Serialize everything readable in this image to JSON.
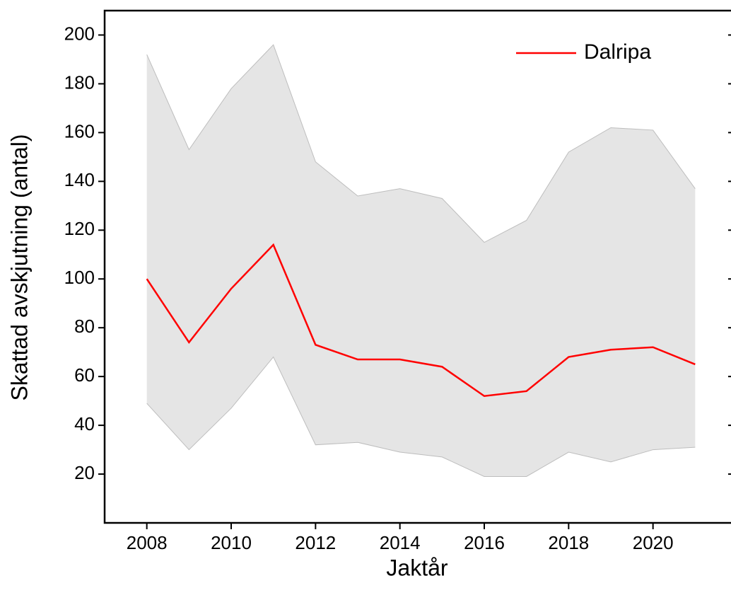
{
  "chart_data": {
    "type": "line",
    "x": [
      2008,
      2009,
      2010,
      2011,
      2012,
      2013,
      2014,
      2015,
      2016,
      2017,
      2018,
      2019,
      2020,
      2021
    ],
    "series": [
      {
        "name": "Dalripa",
        "color": "#ff0000",
        "values": [
          100,
          74,
          96,
          114,
          73,
          67,
          67,
          64,
          52,
          54,
          68,
          71,
          72,
          65
        ]
      }
    ],
    "band": {
      "color": "#e5e5e5",
      "edge": "#bdbdbd",
      "upper": [
        192,
        153,
        178,
        196,
        148,
        134,
        137,
        133,
        115,
        124,
        152,
        162,
        161,
        137
      ],
      "lower": [
        49,
        30,
        47,
        68,
        32,
        33,
        29,
        27,
        19,
        19,
        29,
        25,
        30,
        31
      ]
    },
    "xlabel": "Jaktår",
    "ylabel": "Skattad avskjutning (antal)",
    "xlim": [
      2007,
      2022
    ],
    "ylim": [
      0,
      210
    ],
    "xticks": [
      2008,
      2010,
      2012,
      2014,
      2016,
      2018,
      2020
    ],
    "yticks": [
      20,
      40,
      60,
      80,
      100,
      120,
      140,
      160,
      180,
      200
    ],
    "legend": "upper right"
  }
}
